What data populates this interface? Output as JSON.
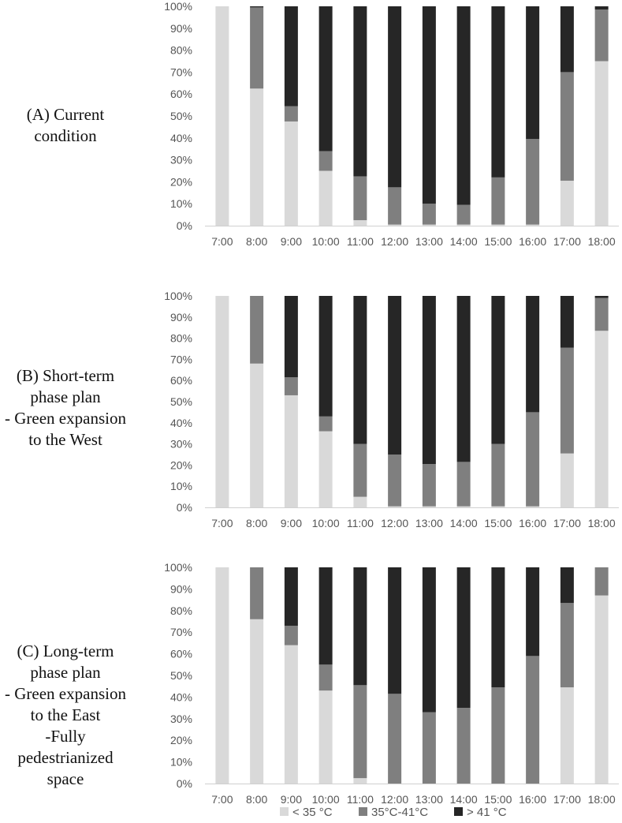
{
  "legend": [
    {
      "label": "< 35 °C",
      "color": "#d9d9d9"
    },
    {
      "label": "35°C-41°C",
      "color": "#7f7f7f"
    },
    {
      "label": "> 41 °C",
      "color": "#262626"
    }
  ],
  "panels": [
    {
      "label_lines": [
        "(A) Current",
        "condition"
      ]
    },
    {
      "label_lines": [
        "(B) Short-term",
        "phase plan",
        "- Green expansion",
        "to the West"
      ]
    },
    {
      "label_lines": [
        "(C) Long-term",
        "phase plan",
        "- Green expansion",
        "to the East",
        "-Fully",
        "pedestrianized",
        "space"
      ]
    }
  ],
  "chart_data": [
    {
      "type": "bar",
      "stacked": true,
      "categories": [
        "7:00",
        "8:00",
        "9:00",
        "10:00",
        "11:00",
        "12:00",
        "13:00",
        "14:00",
        "15:00",
        "16:00",
        "17:00",
        "18:00"
      ],
      "yticks": [
        "0%",
        "10%",
        "20%",
        "30%",
        "40%",
        "50%",
        "60%",
        "70%",
        "80%",
        "90%",
        "100%"
      ],
      "ylim": [
        0,
        100
      ],
      "series": [
        {
          "name": "< 35 °C",
          "values": [
            100,
            62.5,
            47.5,
            25,
            2.5,
            0.5,
            0.5,
            0.5,
            0.5,
            0.5,
            20.5,
            75
          ]
        },
        {
          "name": "35°C-41°C",
          "values": [
            0,
            37,
            7,
            9,
            20,
            17,
            9.5,
            9,
            21.5,
            39,
            49.5,
            23.5
          ]
        },
        {
          "name": "> 41 °C",
          "values": [
            0,
            0.5,
            45.5,
            66,
            77.5,
            82.5,
            90,
            90.5,
            78,
            60.5,
            30,
            1.5
          ]
        }
      ]
    },
    {
      "type": "bar",
      "stacked": true,
      "categories": [
        "7:00",
        "8:00",
        "9:00",
        "10:00",
        "11:00",
        "12:00",
        "13:00",
        "14:00",
        "15:00",
        "16:00",
        "17:00",
        "18:00"
      ],
      "yticks": [
        "0%",
        "10%",
        "20%",
        "30%",
        "40%",
        "50%",
        "60%",
        "70%",
        "80%",
        "90%",
        "100%"
      ],
      "ylim": [
        0,
        100
      ],
      "series": [
        {
          "name": "< 35 °C",
          "values": [
            100,
            68,
            53,
            36,
            5,
            0.5,
            0.5,
            0.5,
            0.5,
            0.5,
            25.5,
            83.5
          ]
        },
        {
          "name": "35°C-41°C",
          "values": [
            0,
            32,
            8.5,
            7,
            25,
            24.5,
            20,
            21,
            29.5,
            44.5,
            50,
            15.5
          ]
        },
        {
          "name": "> 41 °C",
          "values": [
            0,
            0,
            38.5,
            57,
            70,
            75,
            79.5,
            78.5,
            70,
            55,
            24.5,
            1
          ]
        }
      ]
    },
    {
      "type": "bar",
      "stacked": true,
      "categories": [
        "7:00",
        "8:00",
        "9:00",
        "10:00",
        "11:00",
        "12:00",
        "13:00",
        "14:00",
        "15:00",
        "16:00",
        "17:00",
        "18:00"
      ],
      "yticks": [
        "0%",
        "10%",
        "20%",
        "30%",
        "40%",
        "50%",
        "60%",
        "70%",
        "80%",
        "90%",
        "100%"
      ],
      "ylim": [
        0,
        100
      ],
      "series": [
        {
          "name": "< 35 °C",
          "values": [
            100,
            76,
            64,
            43,
            2.5,
            0,
            0,
            0,
            0,
            0,
            44.5,
            87
          ]
        },
        {
          "name": "35°C-41°C",
          "values": [
            0,
            24,
            9,
            12,
            43,
            41.5,
            33,
            35,
            44.5,
            59,
            39,
            13
          ]
        },
        {
          "name": "> 41 °C",
          "values": [
            0,
            0,
            27,
            45,
            54.5,
            58.5,
            67,
            65,
            55.5,
            41,
            16.5,
            0
          ]
        }
      ]
    }
  ]
}
